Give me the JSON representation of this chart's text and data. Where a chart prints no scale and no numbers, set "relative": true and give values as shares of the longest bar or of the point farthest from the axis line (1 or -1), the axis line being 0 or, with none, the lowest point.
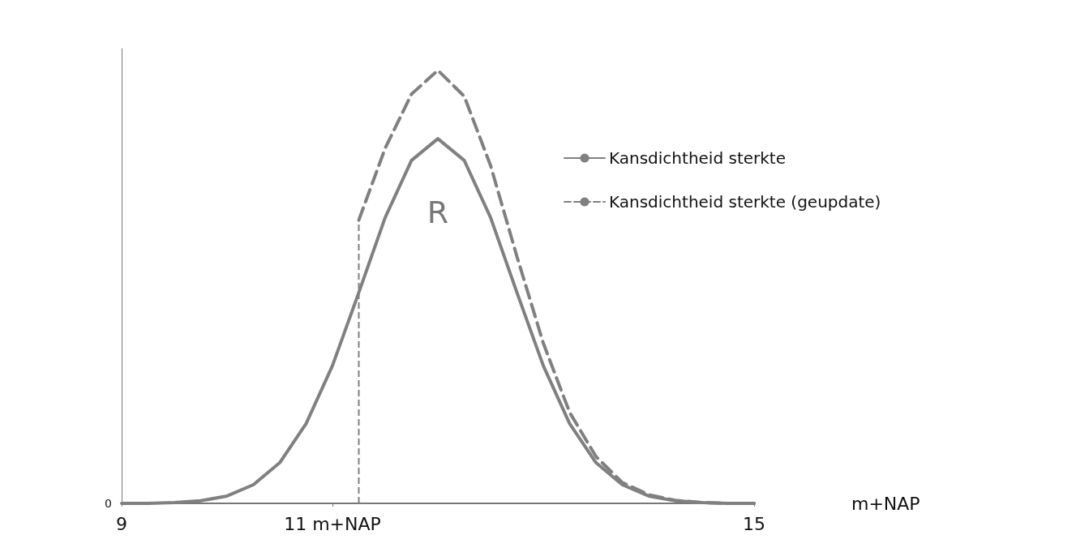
{
  "chart_data": {
    "type": "line",
    "relative": true,
    "xlabel": "m+NAP",
    "xlim": [
      9,
      15
    ],
    "xticks": [
      9,
      {
        "value": 11,
        "label": "11 m+NAP"
      },
      15
    ],
    "series": [
      {
        "name": "Kansdichtheid sterkte",
        "color": "#808080",
        "line_style": "solid",
        "x": [
          9,
          9.25,
          9.5,
          9.75,
          10,
          10.25,
          10.5,
          10.75,
          11,
          11.25,
          11.5,
          11.75,
          12,
          12.25,
          12.5,
          12.75,
          13,
          13.25,
          13.5,
          13.75,
          14,
          14.25,
          14.5,
          14.75,
          15
        ],
        "values": [
          0,
          0,
          0.002,
          0.006,
          0.017,
          0.043,
          0.094,
          0.184,
          0.318,
          0.487,
          0.66,
          0.792,
          0.842,
          0.792,
          0.66,
          0.487,
          0.318,
          0.184,
          0.094,
          0.043,
          0.017,
          0.006,
          0.002,
          0,
          0
        ]
      },
      {
        "name": "Kansdichtheid sterkte (geupdate)",
        "color": "#808080",
        "line_style": "dashed",
        "x": [
          11.25,
          11.5,
          11.75,
          12,
          12.25,
          12.5,
          12.75,
          13,
          13.25,
          13.5,
          13.75,
          14,
          14.25,
          14.5,
          14.75,
          15
        ],
        "values": [
          0.654,
          0.82,
          0.945,
          1,
          0.94,
          0.78,
          0.57,
          0.37,
          0.21,
          0.108,
          0.048,
          0.02,
          0.007,
          0.002,
          0,
          0
        ]
      }
    ],
    "ref_lines": [
      {
        "axis": "x",
        "value": 11.25,
        "color": "#808080",
        "line_style": "dashed"
      }
    ],
    "annotations": [
      "0",
      "R"
    ],
    "legend": "top right",
    "grid": false,
    "marker": "none"
  }
}
